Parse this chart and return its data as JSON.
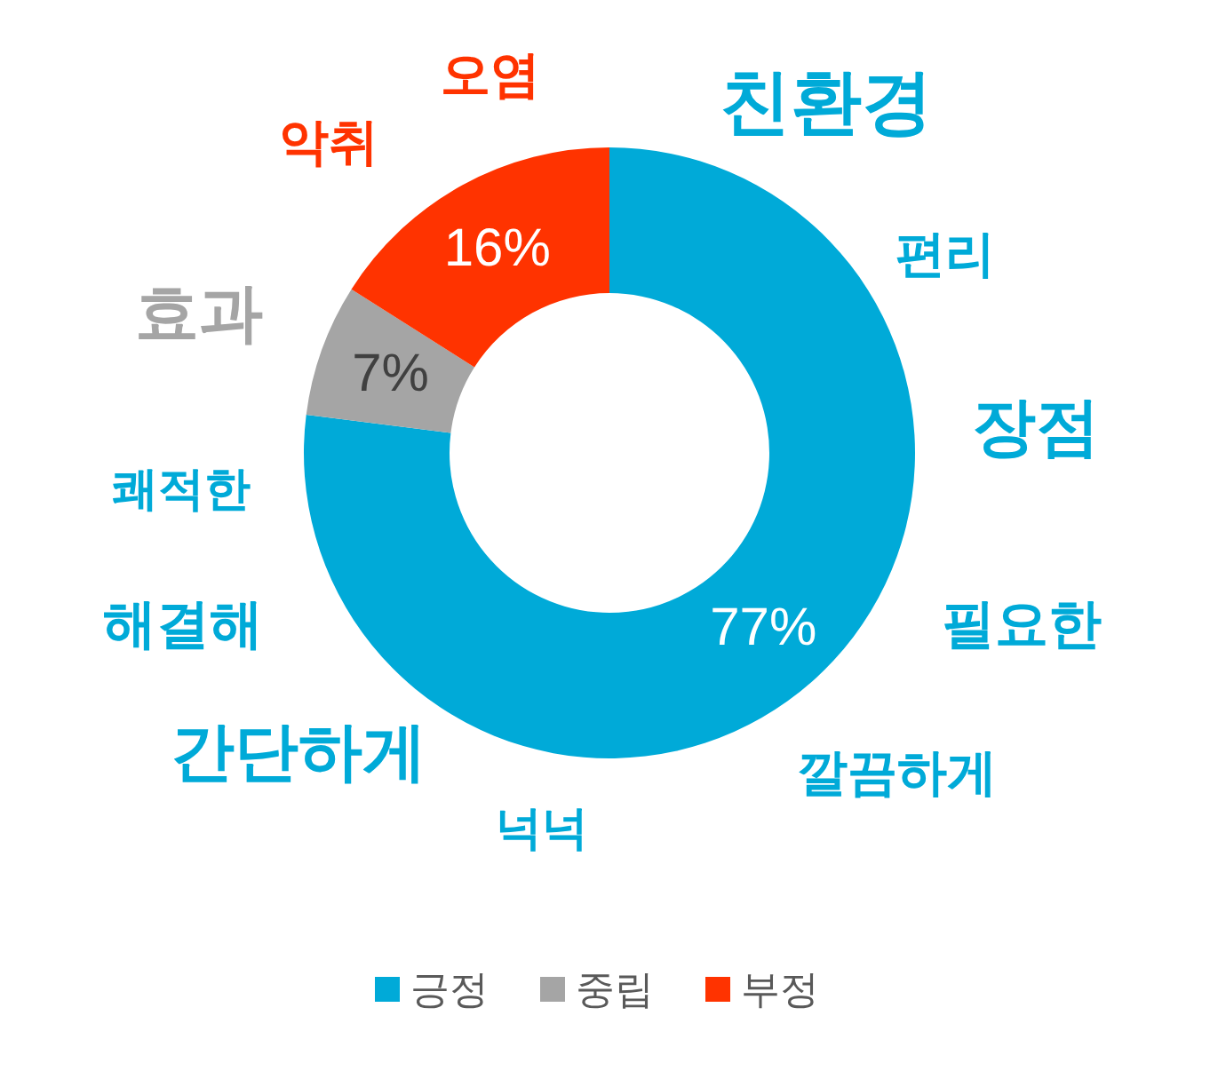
{
  "chart_data": {
    "type": "donut",
    "categories": [
      "긍정",
      "중립",
      "부정"
    ],
    "values": [
      77,
      7,
      16
    ],
    "colors": [
      "#00aad8",
      "#a5a5a5",
      "#ff3300"
    ],
    "value_labels": [
      "77%",
      "7%",
      "16%"
    ],
    "legend": "bottom",
    "annotations": [
      "친환경",
      "편리",
      "장점",
      "필요한",
      "깔끔하게",
      "넉넉",
      "간단하게",
      "해결해",
      "쾌적한",
      "효과",
      "악취",
      "오염"
    ]
  }
}
